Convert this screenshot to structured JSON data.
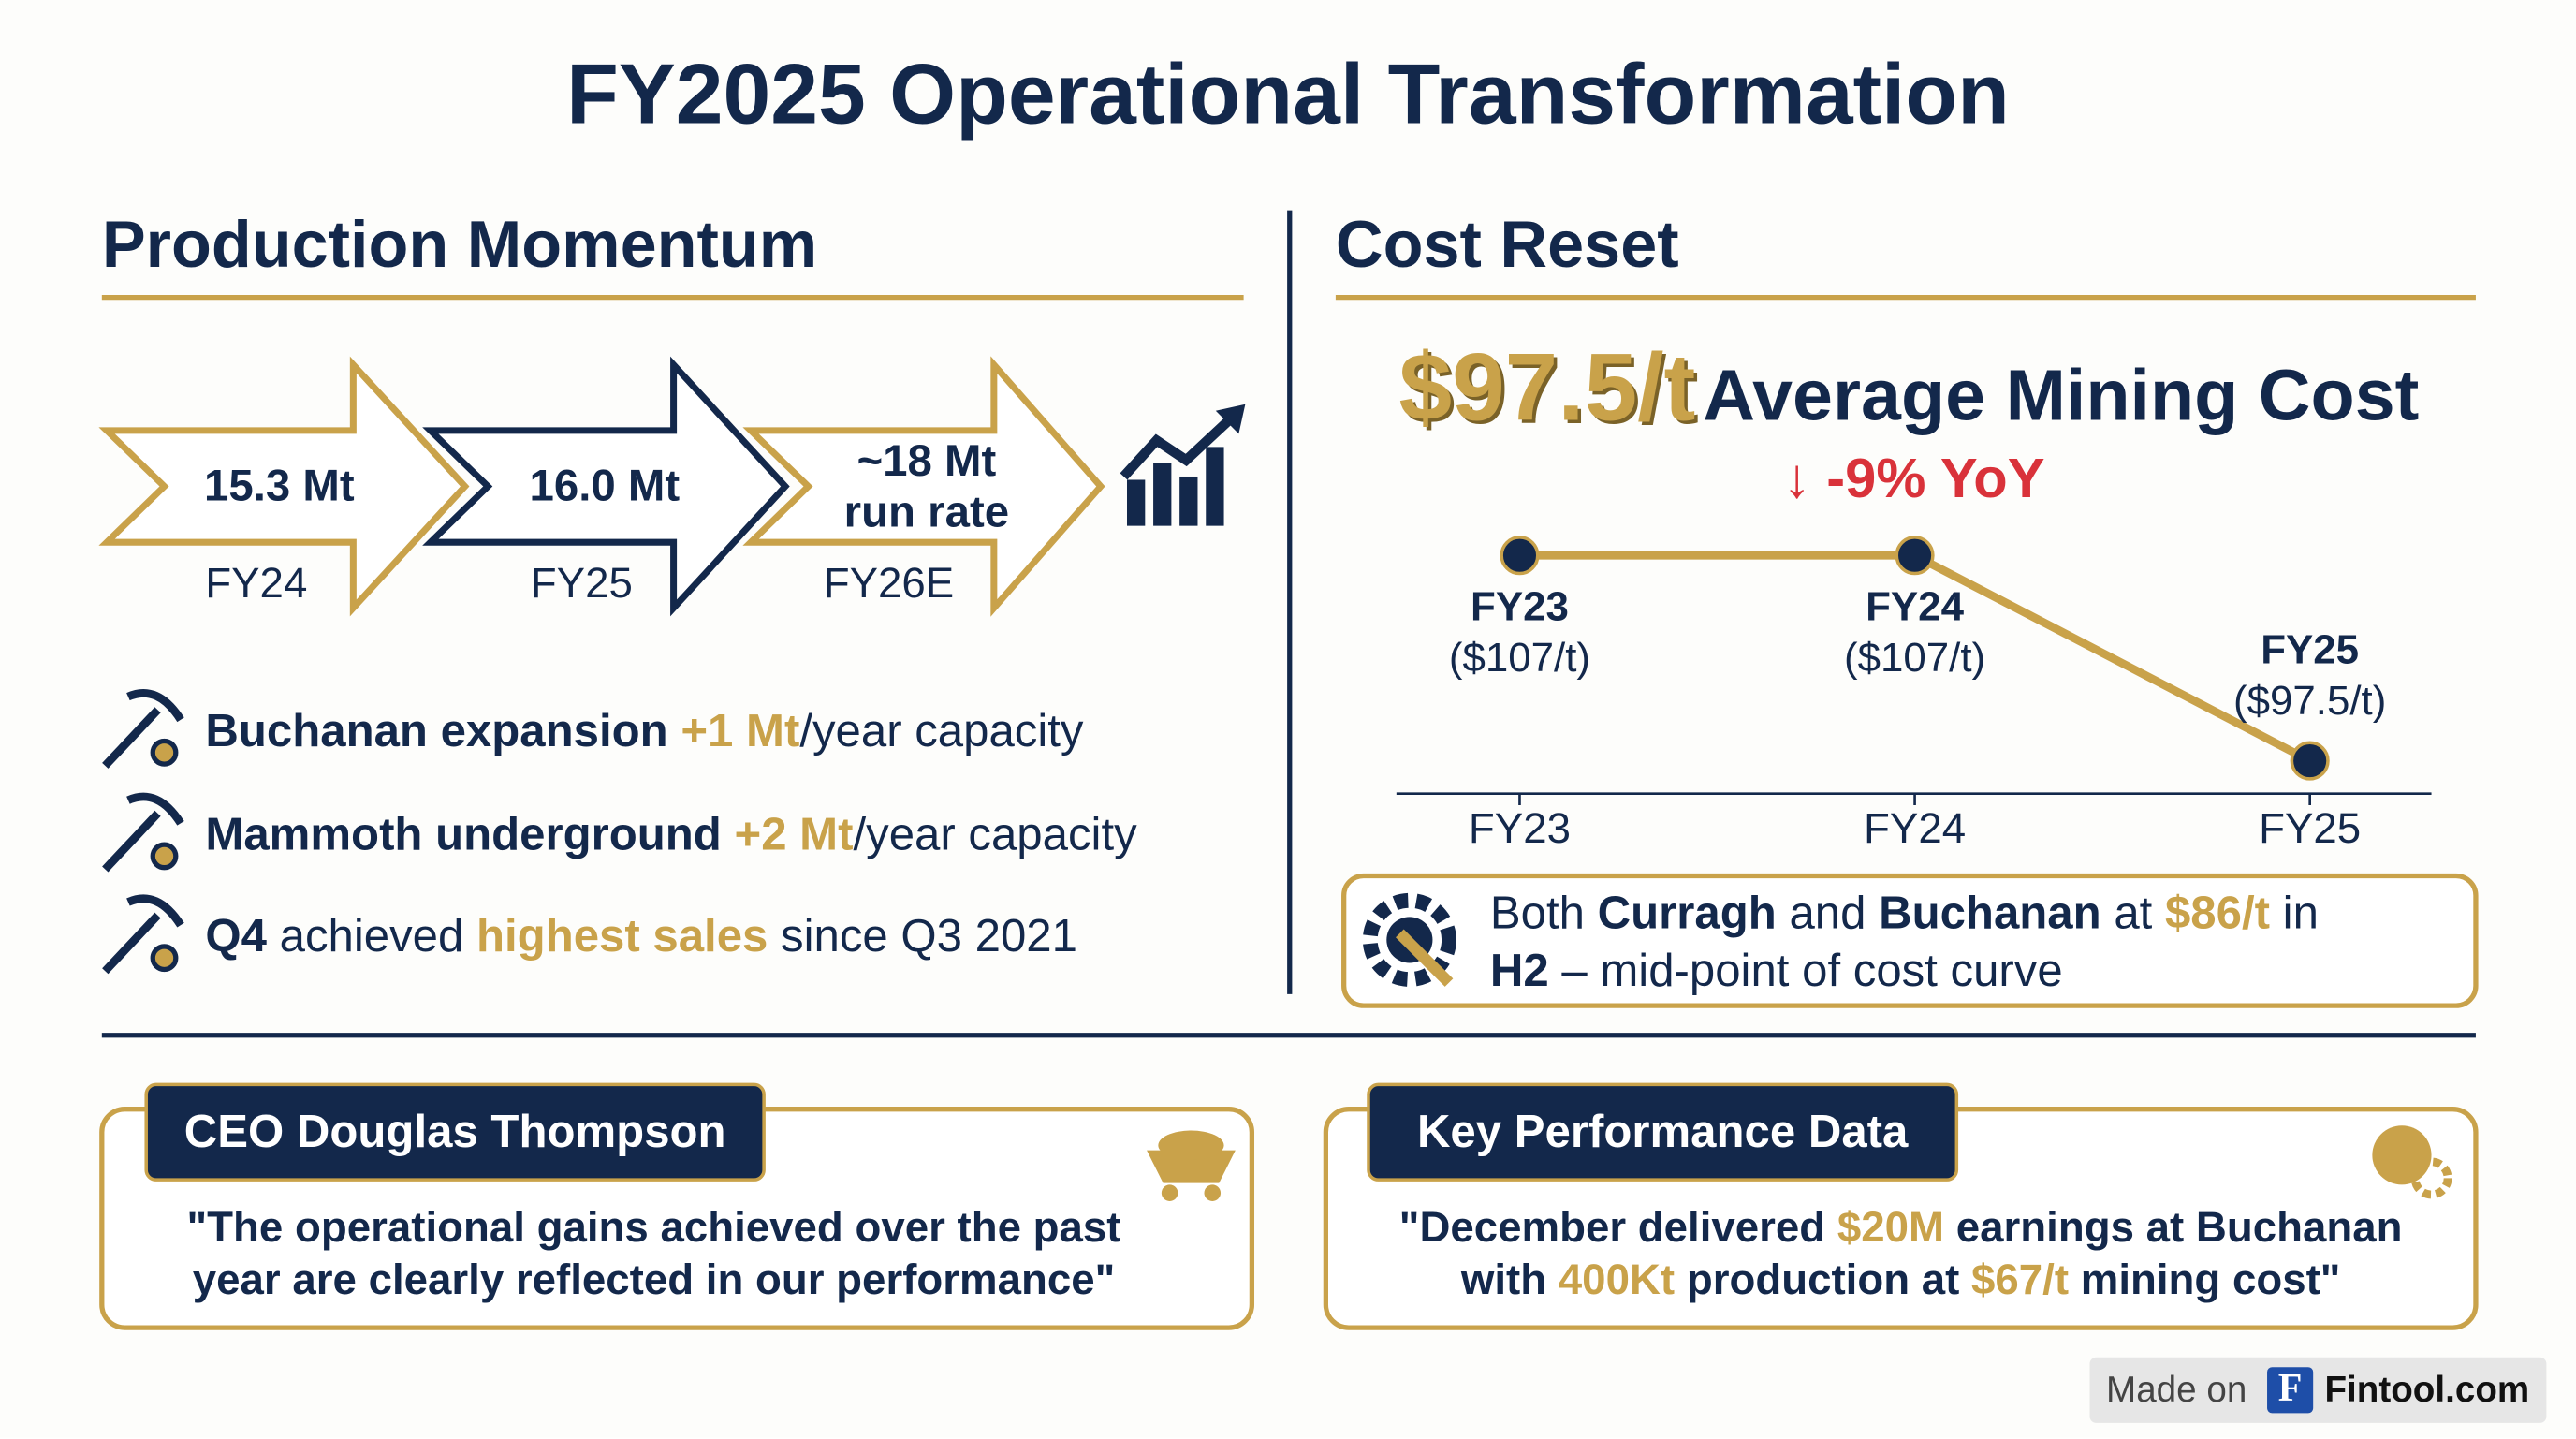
{
  "title": "FY2025 Operational Transformation",
  "production": {
    "heading": "Production Momentum",
    "arrows": [
      {
        "value": "15.3 Mt",
        "label": "FY24"
      },
      {
        "value": "16.0 Mt",
        "label": "FY25"
      },
      {
        "value": [
          "~18 Mt",
          "run rate"
        ],
        "label": "FY26E"
      }
    ],
    "bullets": [
      [
        "Buchanan expansion",
        "+1 Mt",
        "/year capacity"
      ],
      [
        "Mammoth underground",
        "+2 Mt",
        "/year capacity"
      ],
      [
        "Q4",
        "achieved",
        "highest sales",
        "since Q3 2021"
      ]
    ]
  },
  "cost": {
    "heading": "Cost Reset",
    "headline_value": "$97.5/t",
    "headline_label": "Average Mining Cost",
    "change": "↓ -9% YoY",
    "callout": [
      "Both",
      "Curragh",
      "and",
      "Buchanan",
      "at",
      "$86/t",
      "in",
      "H2",
      "– mid-point of cost curve"
    ]
  },
  "chart_data": {
    "type": "line",
    "categories": [
      "FY23",
      "FY24",
      "FY25"
    ],
    "values": [
      107,
      107,
      97.5
    ],
    "value_labels": [
      "($107/t)",
      "($107/t)",
      "($97.5/t)"
    ],
    "color": "#c9a24a"
  },
  "ceo": {
    "tab": "CEO Douglas Thompson",
    "quote": [
      "\"The operational gains achieved over the past",
      "year are clearly reflected in our performance\""
    ]
  },
  "kpd": {
    "tab": "Key Performance Data",
    "quote": [
      "\"December delivered",
      "$20M",
      "earnings at Buchanan",
      "with",
      "400Kt",
      "production at",
      "$67/t",
      "mining cost\""
    ]
  },
  "footer": {
    "made_on": "Made on",
    "logo": "F",
    "brand": "Fintool.com"
  }
}
